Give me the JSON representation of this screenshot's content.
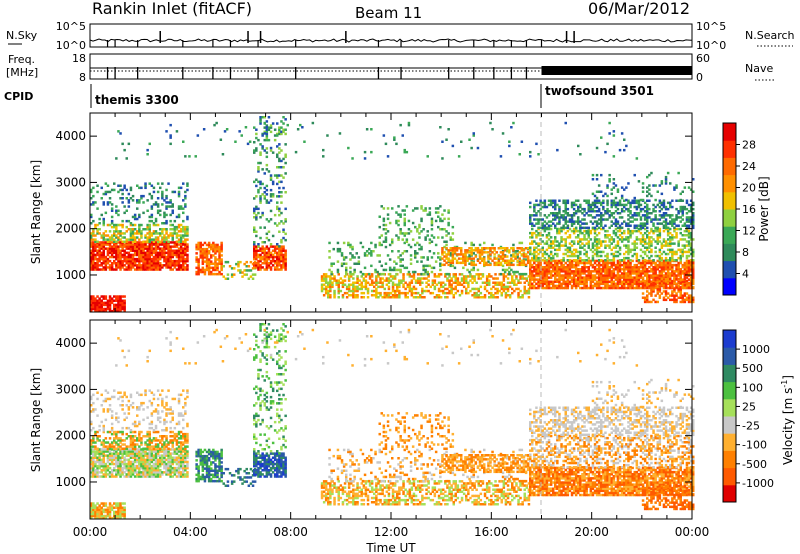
{
  "header": {
    "station": "Rankin Inlet (fitACF)",
    "beam": "Beam 11",
    "date": "06/Mar/2012"
  },
  "strips": {
    "nsky_label": "N.Sky",
    "nsky_ticks": [
      "10^5",
      "10^0"
    ],
    "nsearch_label": "N.Search",
    "nsearch_ticks": [
      "10^5",
      "10^0"
    ],
    "freq_label_line1": "Freq.",
    "freq_label_line2": "[MHz]",
    "freq_ticks": [
      "18",
      "8"
    ],
    "nave_label": "Nave",
    "nave_ticks": [
      "60",
      "0"
    ],
    "cpid_label": "CPID",
    "cpid_segments": [
      {
        "name": "themis 3300",
        "start_hour": 0
      },
      {
        "name": "twofsound 3501",
        "start_hour": 18
      }
    ]
  },
  "colors": {
    "power_scale": [
      "#0000ff",
      "#1f4fb0",
      "#2e8a5a",
      "#3aa856",
      "#8fd040",
      "#f0c000",
      "#ff9000",
      "#ff6a00",
      "#ff3000",
      "#e60000"
    ],
    "velocity_scale": [
      "#1c3ccf",
      "#2b5aa8",
      "#2f8a62",
      "#4cc040",
      "#a6e05a",
      "#c8c8c8",
      "#ffb030",
      "#ff8000",
      "#ff5a00",
      "#e00000"
    ]
  },
  "chart_data": [
    {
      "type": "heatmap",
      "panel": "power",
      "ylabel": "Slant Range [km]",
      "xlabel": "Time UT",
      "x_tick_labels": [
        "00:00",
        "04:00",
        "08:00",
        "12:00",
        "16:00",
        "20:00",
        "00:00"
      ],
      "y_tick_labels": [
        "1000",
        "2000",
        "3000",
        "4000"
      ],
      "ylim": [
        200,
        4500
      ],
      "xlim_hours": [
        0,
        24
      ],
      "colorbar_label": "Power [dB]",
      "colorbar_ticks": [
        "28",
        "24",
        "20",
        "16",
        "12",
        "8",
        "4"
      ],
      "colorbar_range": [
        0,
        30
      ]
    },
    {
      "type": "heatmap",
      "panel": "velocity",
      "ylabel": "Slant Range [km]",
      "xlabel": "Time UT",
      "x_tick_labels": [
        "00:00",
        "04:00",
        "08:00",
        "12:00",
        "16:00",
        "20:00",
        "00:00"
      ],
      "y_tick_labels": [
        "1000",
        "2000",
        "3000",
        "4000"
      ],
      "ylim": [
        200,
        4500
      ],
      "xlim_hours": [
        0,
        24
      ],
      "colorbar_label": "Velocity [m s",
      "colorbar_label_sup": "-1",
      "colorbar_label_end": "]",
      "colorbar_ticks": [
        "1000",
        "500",
        "100",
        "25",
        "-25",
        "-100",
        "-500",
        "-1000"
      ]
    }
  ]
}
